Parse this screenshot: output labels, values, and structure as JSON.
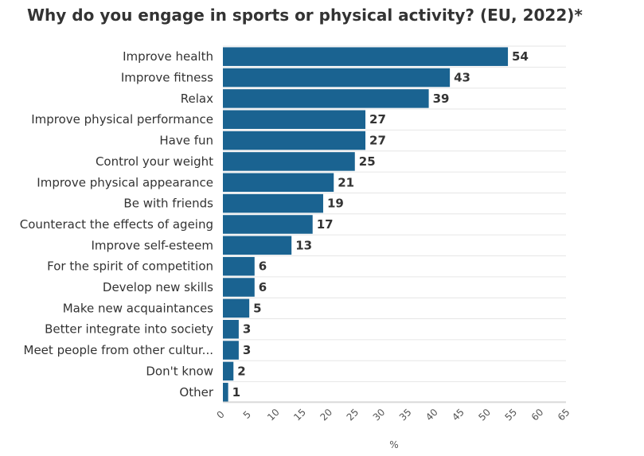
{
  "chart_data": {
    "type": "bar",
    "orientation": "horizontal",
    "title": "Why do you engage in sports or physical activity? (EU, 2022)*",
    "xlabel": "%",
    "ylabel": "",
    "xlim": [
      0,
      65
    ],
    "ticks": [
      0,
      5,
      10,
      15,
      20,
      25,
      30,
      35,
      40,
      45,
      50,
      55,
      60,
      65
    ],
    "grid": true,
    "bar_color": "#1a6391",
    "categories": [
      "Improve health",
      "Improve fitness",
      "Relax",
      "Improve physical performance",
      "Have fun",
      "Control your weight",
      "Improve physical appearance",
      "Be with friends",
      "Counteract the effects of ageing",
      "Improve self-esteem",
      "For the spirit of competition",
      "Develop new skills",
      "Make new acquaintances",
      "Better integrate into society",
      "Meet people from other cultur...",
      "Don't know",
      "Other"
    ],
    "values": [
      54,
      43,
      39,
      27,
      27,
      25,
      21,
      19,
      17,
      13,
      6,
      6,
      5,
      3,
      3,
      2,
      1
    ]
  }
}
